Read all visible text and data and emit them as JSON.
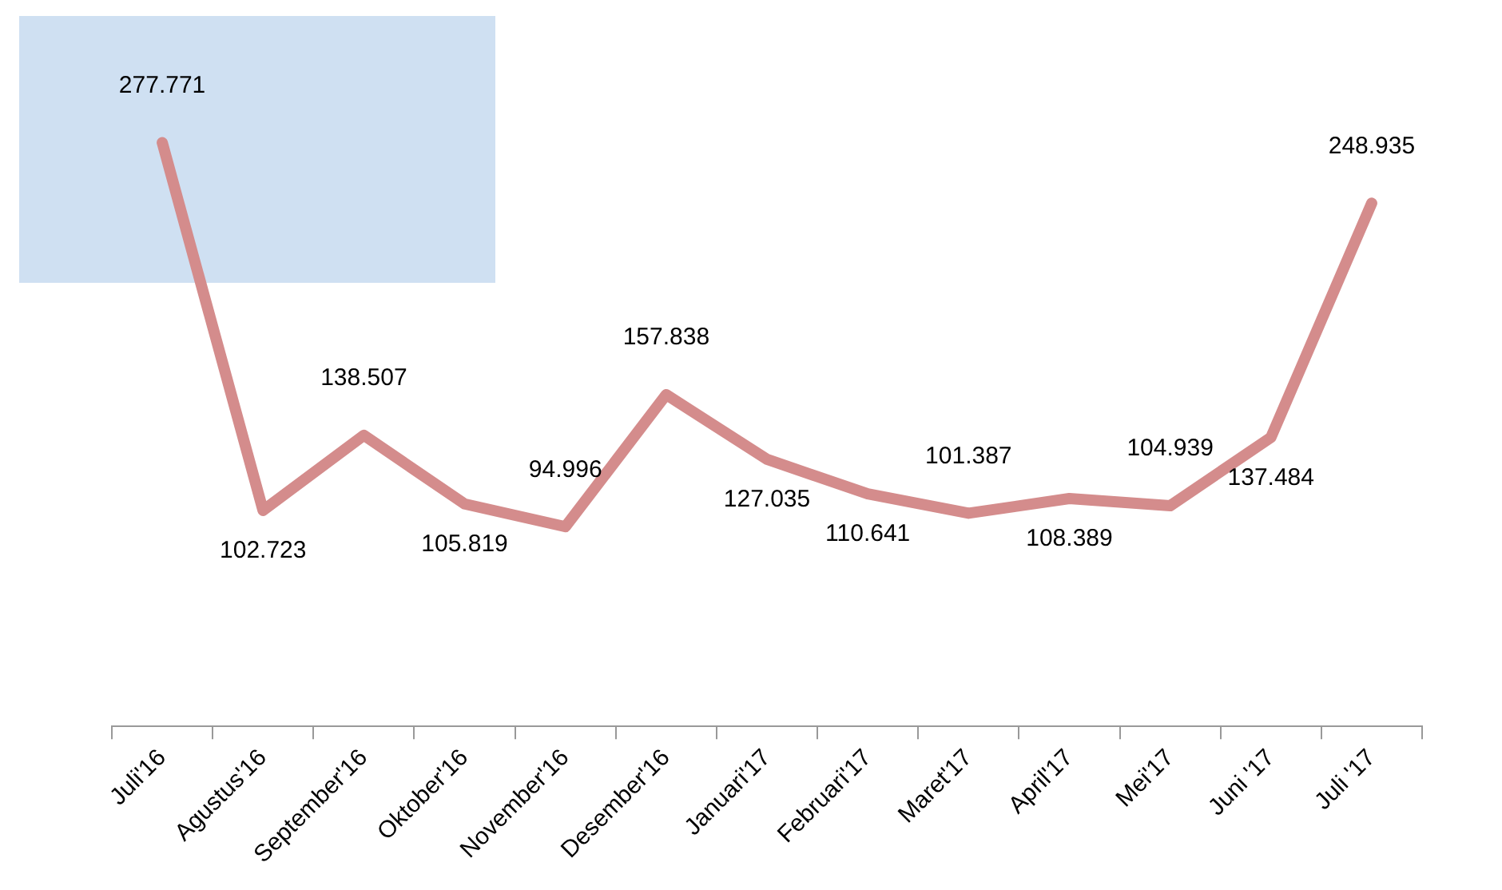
{
  "chart_data": {
    "type": "line",
    "categories": [
      "Juli'16",
      "Agustus'16",
      "September'16",
      "Oktober'16",
      "November'16",
      "Desember'16",
      "Januari'17",
      "Februari'17",
      "Maret'17",
      "April'17",
      "Mei'17",
      "Juni '17",
      "Juli '17"
    ],
    "series": [
      {
        "color": "#d48c8c",
        "values": [
          277.771,
          102.723,
          138.507,
          105.819,
          94.996,
          157.838,
          127.035,
          110.641,
          101.387,
          108.389,
          104.939,
          137.484,
          248.935
        ]
      }
    ],
    "data_labels": true,
    "grid": false,
    "legend": false,
    "marker": "none",
    "line_style": "solid",
    "tick_labels": "x"
  }
}
